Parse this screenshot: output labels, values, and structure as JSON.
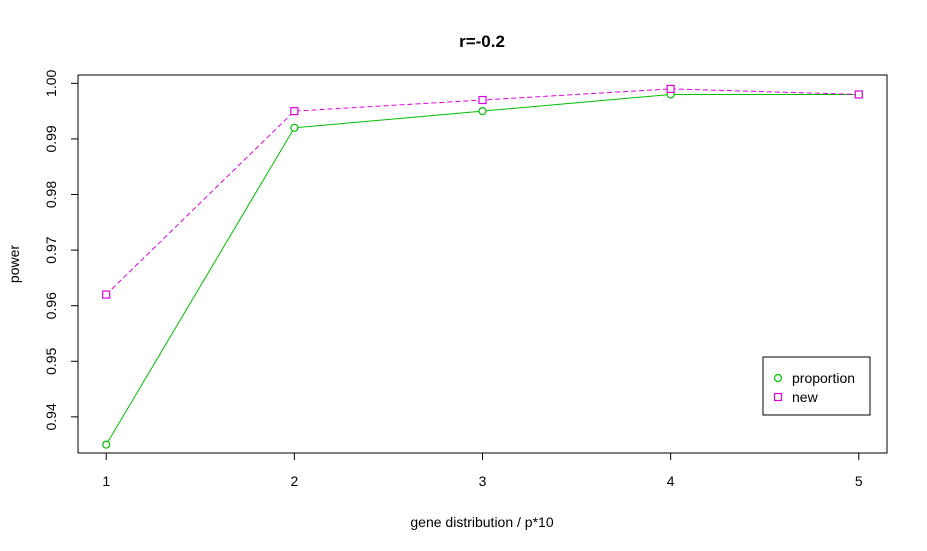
{
  "chart_data": {
    "type": "line",
    "title": "r=-0.2",
    "xlabel": "gene distribution / p*10",
    "ylabel": "power",
    "x": [
      1,
      2,
      3,
      4,
      5
    ],
    "xlim": [
      0.85,
      5.15
    ],
    "ylim": [
      0.9335,
      1.0015
    ],
    "x_ticks": [
      "1",
      "2",
      "3",
      "4",
      "5"
    ],
    "y_ticks": [
      0.94,
      0.95,
      0.96,
      0.97,
      0.98,
      0.99,
      1.0
    ],
    "y_tick_labels": [
      "0.94",
      "0.95",
      "0.96",
      "0.97",
      "0.98",
      "0.99",
      "1.00"
    ],
    "grid": false,
    "legend_position": "bottom-right",
    "series": [
      {
        "name": "proportion",
        "values": [
          0.935,
          0.992,
          0.995,
          0.998,
          0.998
        ],
        "color": "#00c000",
        "marker": "circle",
        "line": "solid"
      },
      {
        "name": "new",
        "values": [
          0.962,
          0.995,
          0.997,
          0.999,
          0.998
        ],
        "color": "#e000e0",
        "marker": "square",
        "line": "dashed"
      }
    ]
  }
}
